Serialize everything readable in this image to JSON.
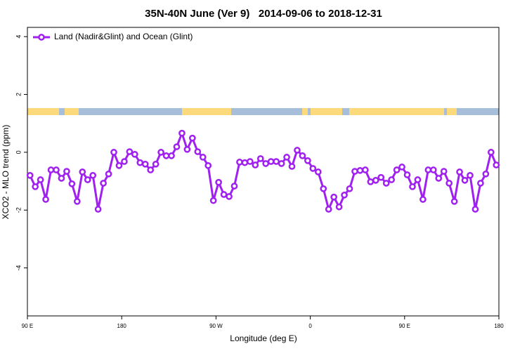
{
  "chart_data": {
    "type": "line",
    "title": "35N-40N June (Ver 9)   2014-09-06 to 2018-12-31",
    "xlabel": "Longitude (deg E)",
    "ylabel": "XCO2 - MLO trend (ppm)",
    "x": [
      92.5,
      97.5,
      102.5,
      107.5,
      112.5,
      117.5,
      122.5,
      127.5,
      132.5,
      137.5,
      142.5,
      147.5,
      152.5,
      157.5,
      162.5,
      167.5,
      172.5,
      177.5,
      182.5,
      187.5,
      192.5,
      197.5,
      202.5,
      207.5,
      212.5,
      217.5,
      222.5,
      227.5,
      232.5,
      237.5,
      242.5,
      247.5,
      252.5,
      257.5,
      262.5,
      267.5,
      272.5,
      277.5,
      282.5,
      287.5,
      292.5,
      297.5,
      302.5,
      307.5,
      312.5,
      317.5,
      322.5,
      327.5,
      332.5,
      337.5,
      342.5,
      347.5,
      352.5,
      357.5,
      362.5,
      367.5,
      372.5,
      377.5,
      382.5,
      387.5,
      392.5,
      397.5,
      402.5,
      407.5,
      412.5,
      417.5,
      422.5,
      427.5,
      432.5,
      437.5,
      442.5,
      447.5,
      452.5,
      457.5,
      462.5,
      467.5,
      472.5,
      477.5,
      482.5,
      487.5,
      492.5,
      497.5,
      502.5,
      507.5,
      512.5,
      517.5,
      522.5,
      527.5,
      532.5,
      537.5
    ],
    "series": [
      {
        "name": "Land (Nadir&Glint) and Ocean (Glint)",
        "color": "#a020f0",
        "values": [
          -0.8,
          -1.19,
          -0.95,
          -1.63,
          -0.61,
          -0.61,
          -0.9,
          -0.66,
          -1.09,
          -1.7,
          -0.68,
          -0.95,
          -0.8,
          -1.97,
          -1.07,
          -0.75,
          0.0,
          -0.46,
          -0.32,
          0.02,
          -0.07,
          -0.36,
          -0.41,
          -0.61,
          -0.41,
          0.0,
          -0.12,
          -0.12,
          0.19,
          0.66,
          0.1,
          0.49,
          0.02,
          -0.17,
          -0.46,
          -1.67,
          -1.04,
          -1.46,
          -1.53,
          -1.17,
          -0.34,
          -0.36,
          -0.32,
          -0.44,
          -0.22,
          -0.39,
          -0.32,
          -0.32,
          -0.39,
          -0.17,
          -0.49,
          0.07,
          -0.12,
          -0.29,
          -0.56,
          -0.68,
          -1.26,
          -1.97,
          -1.55,
          -1.89,
          -1.48,
          -1.26,
          -0.66,
          -0.63,
          -0.61,
          -1.02,
          -0.97,
          -0.87,
          -1.07,
          -0.95,
          -0.61,
          -0.51,
          -0.78,
          -1.19,
          -0.95,
          -1.63,
          -0.61,
          -0.61,
          -0.9,
          -0.66,
          -1.07,
          -1.7,
          -0.68,
          -0.97,
          -0.8,
          -1.97,
          -1.07,
          -0.75,
          0.0,
          -0.44
        ]
      }
    ],
    "xlim": [
      90,
      540
    ],
    "xticks": [
      {
        "value": 90,
        "label": "90 E"
      },
      {
        "value": 180,
        "label": "180"
      },
      {
        "value": 270,
        "label": "90 W"
      },
      {
        "value": 360,
        "label": "0"
      },
      {
        "value": 450,
        "label": "90 E"
      },
      {
        "value": 540,
        "label": "180"
      }
    ],
    "ylim": [
      -5.66,
      4.32
    ],
    "yticks": [
      -4,
      -2,
      0,
      2,
      4
    ],
    "legend": "top-left"
  }
}
